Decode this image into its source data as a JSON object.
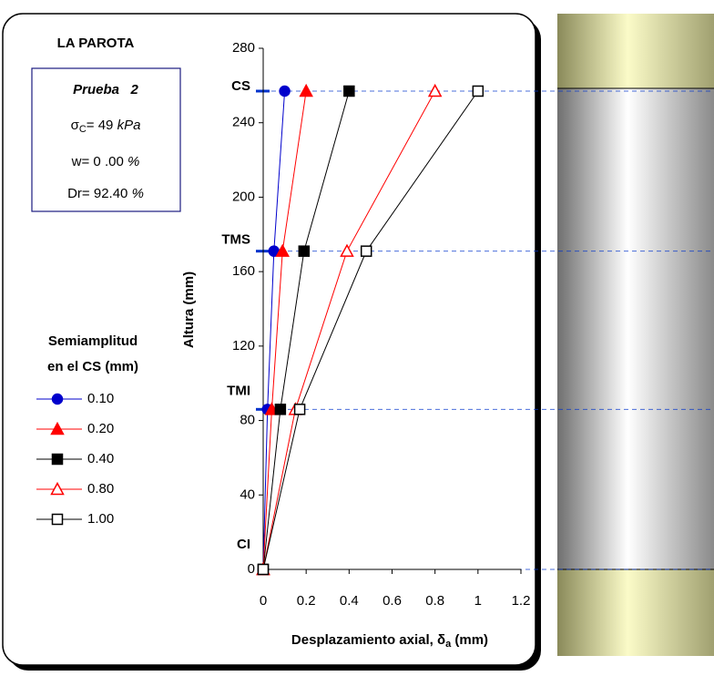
{
  "chart_data": {
    "type": "line",
    "title": "LA PAROTA",
    "info": {
      "test": "Prueba   2",
      "sigma": "σ",
      "sigma_sub": "C",
      "sigma_eq": "= 49 ",
      "sigma_unit": "kPa",
      "w": "w= 0 .00 ",
      "dr": "Dr= 92.40 ",
      "pct": "%"
    },
    "legend_title": [
      "Semiamplitud",
      "en el CS (mm)"
    ],
    "y_label": "Altura (mm)",
    "x_label": {
      "main": "Desplazamiento axial, δ",
      "sub": "a",
      "unit": " (mm)"
    },
    "y": [
      0,
      86,
      171,
      257
    ],
    "levels": [
      {
        "label": "CI",
        "value": 0
      },
      {
        "label": "TMI",
        "value": 86
      },
      {
        "label": "TMS",
        "value": 171
      },
      {
        "label": "CS",
        "value": 257
      }
    ],
    "series": [
      {
        "name": "0.10",
        "color": "#0000cc",
        "marker": "circle",
        "filled": true,
        "x": [
          0,
          0.02,
          0.05,
          0.1
        ]
      },
      {
        "name": "0.20",
        "color": "#ff0000",
        "marker": "triangle",
        "filled": true,
        "x": [
          0,
          0.04,
          0.09,
          0.2
        ]
      },
      {
        "name": "0.40",
        "color": "#000000",
        "marker": "square",
        "filled": true,
        "x": [
          0,
          0.08,
          0.19,
          0.4
        ]
      },
      {
        "name": "0.80",
        "color": "#ff0000",
        "marker": "triangle",
        "filled": false,
        "x": [
          0,
          0.15,
          0.39,
          0.8
        ]
      },
      {
        "name": "1.00",
        "color": "#000000",
        "marker": "square",
        "filled": false,
        "x": [
          0,
          0.17,
          0.48,
          1.0
        ]
      }
    ],
    "xlim": [
      0,
      1.2
    ],
    "xticks": [
      0,
      0.2,
      0.4,
      0.6,
      0.8,
      1,
      1.2
    ],
    "ylim": [
      0,
      280
    ],
    "yticks": [
      0,
      40,
      80,
      120,
      160,
      200,
      240,
      280
    ],
    "level_color": "#0033cc",
    "grid": false
  }
}
